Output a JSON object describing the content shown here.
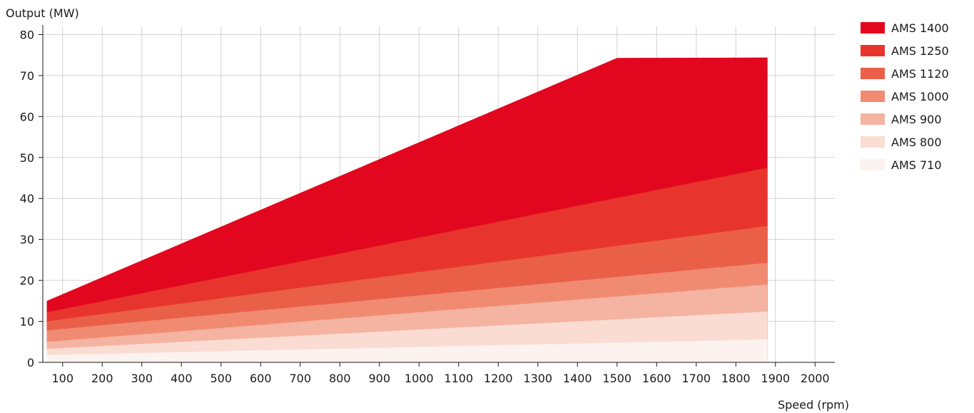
{
  "chart_data": {
    "type": "area",
    "ylabel": "Output (MW)",
    "xlabel": "Speed (rpm)",
    "xlim": [
      50,
      2050
    ],
    "ylim": [
      0,
      82
    ],
    "x_ticks": [
      100,
      200,
      300,
      400,
      500,
      600,
      700,
      800,
      900,
      1000,
      1100,
      1200,
      1300,
      1400,
      1500,
      1600,
      1700,
      1800,
      1900,
      2000
    ],
    "y_ticks": [
      0,
      10,
      20,
      30,
      40,
      50,
      60,
      70,
      80
    ],
    "grid": true,
    "legend_position": "top-right",
    "series": [
      {
        "name": "AMS 1400",
        "color": "#e2071f",
        "points": [
          [
            60,
            15.0
          ],
          [
            1500,
            74.3
          ],
          [
            1880,
            74.4
          ],
          [
            1880,
            0
          ]
        ]
      },
      {
        "name": "AMS 1250",
        "color": "#e7352d",
        "points": [
          [
            60,
            12.2
          ],
          [
            1880,
            47.5
          ],
          [
            1880,
            0
          ]
        ]
      },
      {
        "name": "AMS 1120",
        "color": "#ea5f47",
        "points": [
          [
            60,
            10.0
          ],
          [
            1880,
            33.3
          ],
          [
            1880,
            0
          ]
        ]
      },
      {
        "name": "AMS 1000",
        "color": "#f08b72",
        "points": [
          [
            60,
            7.8
          ],
          [
            1880,
            24.3
          ],
          [
            1880,
            0
          ]
        ]
      },
      {
        "name": "AMS 900",
        "color": "#f5b3a2",
        "points": [
          [
            60,
            5.0
          ],
          [
            1880,
            19.0
          ],
          [
            1880,
            0
          ]
        ]
      },
      {
        "name": "AMS 800",
        "color": "#fbdcd2",
        "points": [
          [
            60,
            3.3
          ],
          [
            1880,
            12.4
          ],
          [
            1880,
            0
          ]
        ]
      },
      {
        "name": "AMS 710",
        "color": "#fcf2ef",
        "points": [
          [
            60,
            1.8
          ],
          [
            1880,
            5.6
          ],
          [
            1880,
            0
          ]
        ]
      }
    ]
  }
}
